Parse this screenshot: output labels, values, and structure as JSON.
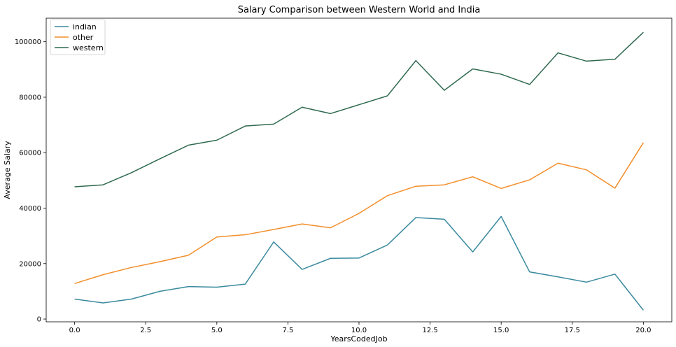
{
  "chart_data": {
    "type": "line",
    "title": "Salary Comparison between Western World and India",
    "xlabel": "YearsCodedJob",
    "ylabel": "Average Salary",
    "xlim": [
      -1,
      21
    ],
    "ylim": [
      -1000,
      108500
    ],
    "xticks": [
      0.0,
      2.5,
      5.0,
      7.5,
      10.0,
      12.5,
      15.0,
      17.5,
      20.0
    ],
    "xtick_labels": [
      "0.0",
      "2.5",
      "5.0",
      "7.5",
      "10.0",
      "12.5",
      "15.0",
      "17.5",
      "20.0"
    ],
    "yticks": [
      0,
      20000,
      40000,
      60000,
      80000,
      100000
    ],
    "ytick_labels": [
      "0",
      "20000",
      "40000",
      "60000",
      "80000",
      "100000"
    ],
    "grid": false,
    "legend_position": "top-left",
    "x": [
      0,
      1,
      2,
      3,
      4,
      5,
      6,
      7,
      8,
      9,
      10,
      11,
      12,
      13,
      14,
      15,
      16,
      17,
      18,
      19,
      20
    ],
    "series": [
      {
        "name": "indian",
        "color": "#3a8a9e",
        "values": [
          7200,
          5800,
          7200,
          10000,
          11700,
          11500,
          12600,
          27800,
          17900,
          21900,
          22000,
          26700,
          36600,
          36000,
          24200,
          37000,
          17000,
          15200,
          13300,
          16200,
          3200
        ]
      },
      {
        "name": "other",
        "color": "#f28e2b",
        "values": [
          12800,
          16000,
          18600,
          20700,
          23000,
          29600,
          30400,
          32300,
          34300,
          32900,
          38100,
          44500,
          47900,
          48400,
          51300,
          47100,
          50200,
          56200,
          53800,
          47200,
          63600
        ]
      },
      {
        "name": "western",
        "color": "#2f6a4f",
        "values": [
          47700,
          48400,
          52800,
          57800,
          62700,
          64500,
          69600,
          70300,
          76400,
          74100,
          77300,
          80500,
          93200,
          82500,
          90200,
          88300,
          84600,
          96000,
          93000,
          93700,
          103400
        ]
      }
    ]
  }
}
